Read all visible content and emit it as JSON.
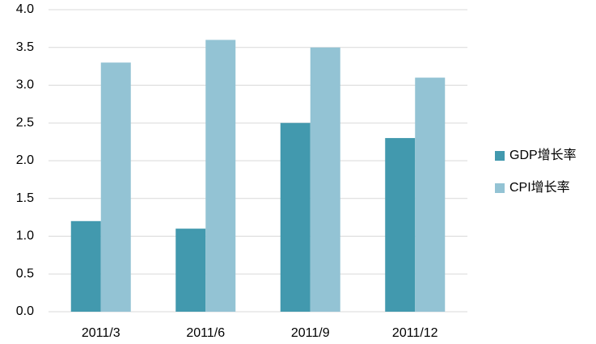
{
  "chart_data": {
    "type": "bar",
    "categories": [
      "2011/3",
      "2011/6",
      "2011/9",
      "2011/12"
    ],
    "series": [
      {
        "name": "GDP增长率",
        "color": "#4299ae",
        "values": [
          1.2,
          1.1,
          2.5,
          2.3
        ]
      },
      {
        "name": "CPI增长率",
        "color": "#93c3d4",
        "values": [
          3.3,
          3.6,
          3.5,
          3.1
        ]
      }
    ],
    "ylim": [
      0,
      4
    ],
    "yticks": [
      {
        "value": 0,
        "label": "0.0"
      },
      0.5,
      {
        "value": 1,
        "label": "1.0"
      },
      1.5,
      {
        "value": 2,
        "label": "2.0"
      },
      2.5,
      {
        "value": 3,
        "label": "3.0"
      },
      3.5,
      {
        "value": 4,
        "label": "4.0"
      }
    ],
    "grid": true,
    "legend": "right"
  }
}
